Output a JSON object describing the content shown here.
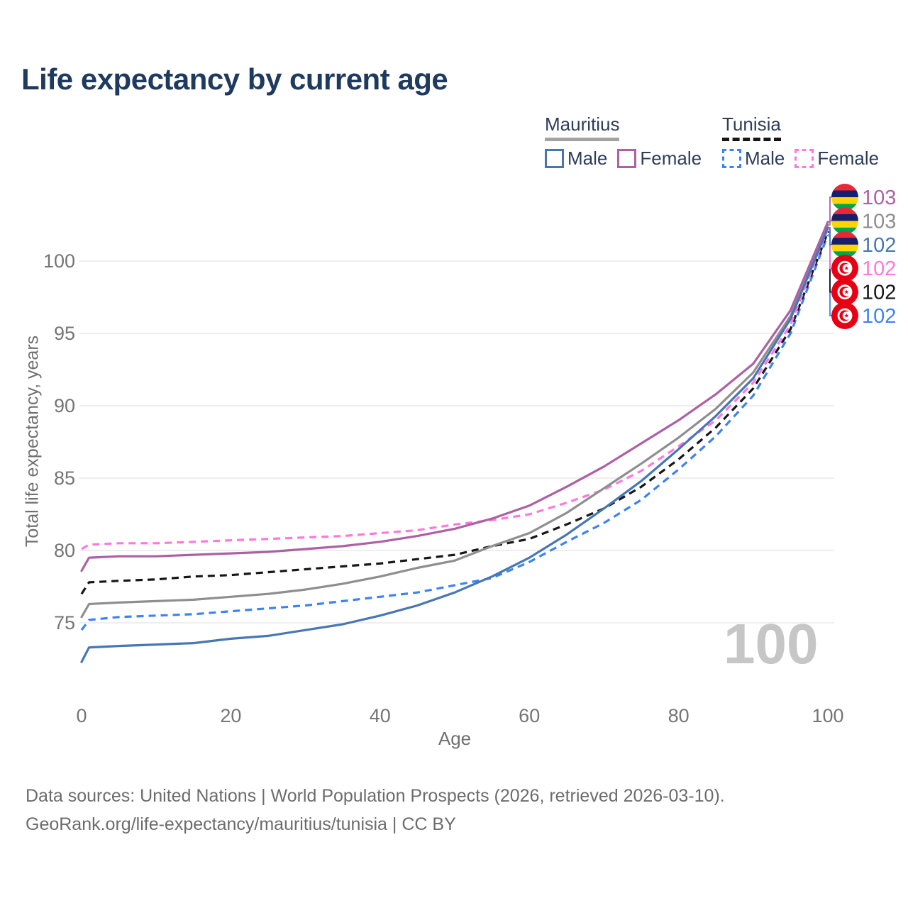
{
  "legend": {
    "groups": [
      {
        "name": "Mauritius",
        "line_style": "solid",
        "line_color": "#a3a3a3",
        "items": [
          {
            "label": "Male",
            "color": "#4677b4",
            "style": "solid"
          },
          {
            "label": "Female",
            "color": "#ad60a4",
            "style": "solid"
          }
        ]
      },
      {
        "name": "Tunisia",
        "line_style": "dashed",
        "line_color": "#161616",
        "items": [
          {
            "label": "Male",
            "color": "#3c83f2",
            "style": "dashed"
          },
          {
            "label": "Female",
            "color": "#ff78df",
            "style": "dashed"
          }
        ]
      }
    ]
  },
  "chart_data": {
    "type": "line",
    "title": "Life expectancy by current age",
    "xlabel": "Age",
    "ylabel": "Total life expectancy, years",
    "watermark": "100",
    "x": [
      0,
      1,
      5,
      10,
      15,
      20,
      25,
      30,
      35,
      40,
      45,
      50,
      55,
      60,
      65,
      70,
      75,
      80,
      85,
      90,
      95,
      100
    ],
    "xticks": [
      0,
      20,
      40,
      60,
      80,
      100
    ],
    "yticks": [
      75,
      80,
      85,
      90,
      95,
      100
    ],
    "xlim": [
      0,
      100
    ],
    "ylim": [
      75,
      100
    ],
    "grid": "horizontal",
    "legend_position": "top-right",
    "series": [
      {
        "name": "Tunisia Male",
        "country": "Tunisia",
        "flag": "tunisia",
        "dash": true,
        "color": "#3c83f2",
        "end_label": "102",
        "row": 5,
        "values": [
          74.5,
          75.2,
          75.4,
          75.5,
          75.6,
          75.8,
          76.0,
          76.2,
          76.5,
          76.8,
          77.1,
          77.6,
          78.1,
          79.2,
          80.6,
          81.9,
          83.5,
          85.6,
          87.9,
          90.7,
          95.0,
          101.8
        ]
      },
      {
        "name": "Tunisia",
        "country": "Tunisia",
        "flag": "tunisia",
        "dash": true,
        "color": "#161616",
        "end_label": "102",
        "row": 4,
        "values": [
          77.0,
          77.8,
          77.9,
          78.0,
          78.2,
          78.3,
          78.5,
          78.7,
          78.9,
          79.1,
          79.4,
          79.7,
          80.3,
          80.8,
          81.8,
          82.9,
          84.4,
          86.3,
          88.5,
          91.2,
          95.3,
          102.0
        ]
      },
      {
        "name": "Tunisia Female",
        "country": "Tunisia",
        "flag": "tunisia",
        "dash": true,
        "color": "#ff78df",
        "end_label": "102",
        "row": 3,
        "values": [
          80.1,
          80.4,
          80.5,
          80.5,
          80.6,
          80.7,
          80.8,
          80.9,
          81.0,
          81.2,
          81.4,
          81.8,
          82.1,
          82.5,
          83.3,
          84.2,
          85.5,
          87.2,
          89.0,
          91.6,
          95.6,
          102.2
        ]
      },
      {
        "name": "Mauritius",
        "country": "Mauritius",
        "flag": "mauritius",
        "dash": false,
        "color": "#8e8e8e",
        "end_label": "103",
        "row": 1,
        "values": [
          75.4,
          76.3,
          76.4,
          76.5,
          76.6,
          76.8,
          77.0,
          77.3,
          77.7,
          78.2,
          78.8,
          79.3,
          80.3,
          81.2,
          82.6,
          84.3,
          86.0,
          87.8,
          89.8,
          92.3,
          96.2,
          102.5
        ]
      },
      {
        "name": "Mauritius Male",
        "country": "Mauritius",
        "flag": "mauritius",
        "dash": false,
        "color": "#4677b4",
        "end_label": "102",
        "row": 2,
        "values": [
          72.3,
          73.3,
          73.4,
          73.5,
          73.6,
          73.9,
          74.1,
          74.5,
          74.9,
          75.5,
          76.2,
          77.1,
          78.2,
          79.5,
          81.1,
          82.9,
          84.8,
          87.0,
          89.3,
          91.9,
          96.0,
          102.3
        ]
      },
      {
        "name": "Mauritius Female",
        "country": "Mauritius",
        "flag": "mauritius",
        "dash": false,
        "color": "#ad60a4",
        "end_label": "103",
        "row": 0,
        "values": [
          78.6,
          79.5,
          79.6,
          79.6,
          79.7,
          79.8,
          79.9,
          80.1,
          80.3,
          80.6,
          81.0,
          81.5,
          82.2,
          83.1,
          84.4,
          85.8,
          87.4,
          89.0,
          90.8,
          92.9,
          96.6,
          102.7
        ]
      }
    ]
  },
  "footer": {
    "line1": "Data sources: United Nations | World Population Prospects (2026, retrieved 2026-03-10).",
    "line2": "GeoRank.org/life-expectancy/mauritius/tunisia | CC BY"
  }
}
